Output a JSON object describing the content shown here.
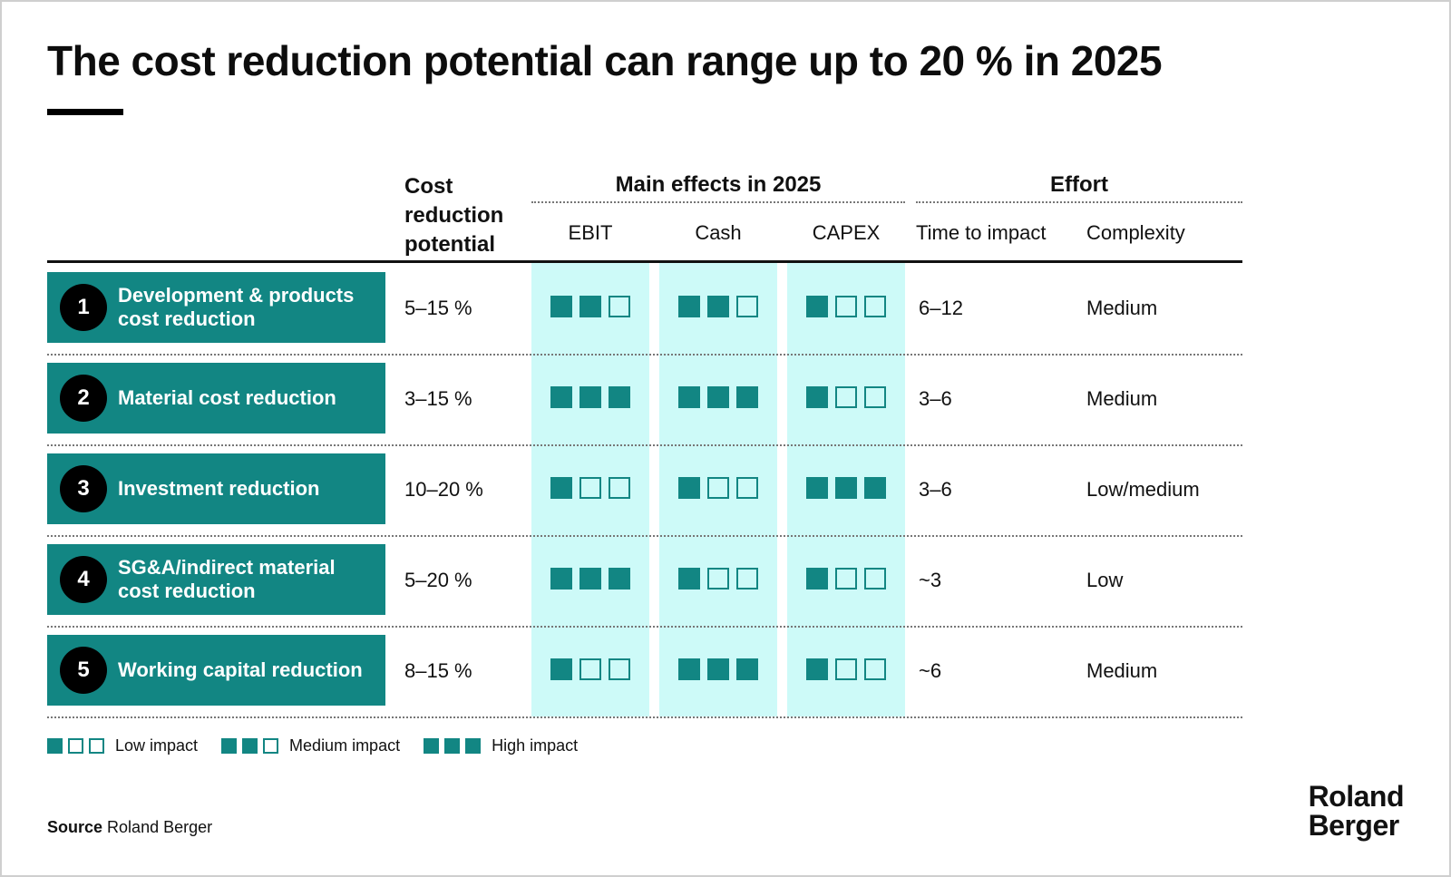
{
  "title": "The cost reduction potential can range up to 20 % in 2025",
  "columns": {
    "cost": "Cost reduction potential",
    "main_effects": "Main effects in 2025",
    "ebit": "EBIT",
    "cash": "Cash",
    "capex": "CAPEX",
    "effort": "Effort",
    "time": "Time to impact",
    "complexity": "Complexity"
  },
  "rows": [
    {
      "num": "1",
      "label": "Development & products cost reduction",
      "cost": "5–15 %",
      "ebit": 2,
      "cash": 2,
      "capex": 1,
      "time": "6–12",
      "complexity": "Medium"
    },
    {
      "num": "2",
      "label": "Material cost reduction",
      "cost": "3–15 %",
      "ebit": 3,
      "cash": 3,
      "capex": 1,
      "time": "3–6",
      "complexity": "Medium"
    },
    {
      "num": "3",
      "label": "Investment reduction",
      "cost": "10–20 %",
      "ebit": 1,
      "cash": 1,
      "capex": 3,
      "time": "3–6",
      "complexity": "Low/medium"
    },
    {
      "num": "4",
      "label": "SG&A/indirect material cost reduction",
      "cost": "5–20 %",
      "ebit": 3,
      "cash": 1,
      "capex": 1,
      "time": "~3",
      "complexity": "Low"
    },
    {
      "num": "5",
      "label": "Working capital reduction",
      "cost": "8–15 %",
      "ebit": 1,
      "cash": 3,
      "capex": 1,
      "time": "~6",
      "complexity": "Medium"
    }
  ],
  "legend": [
    {
      "label": "Low impact",
      "filled": 1
    },
    {
      "label": "Medium impact",
      "filled": 2
    },
    {
      "label": "High impact",
      "filled": 3
    }
  ],
  "source": {
    "label": "Source",
    "text": "Roland Berger"
  },
  "logo": {
    "line1": "Roland",
    "line2": "Berger"
  },
  "colors": {
    "teal": "#128683",
    "shade": "#cdfaf8",
    "text": "#111111"
  }
}
